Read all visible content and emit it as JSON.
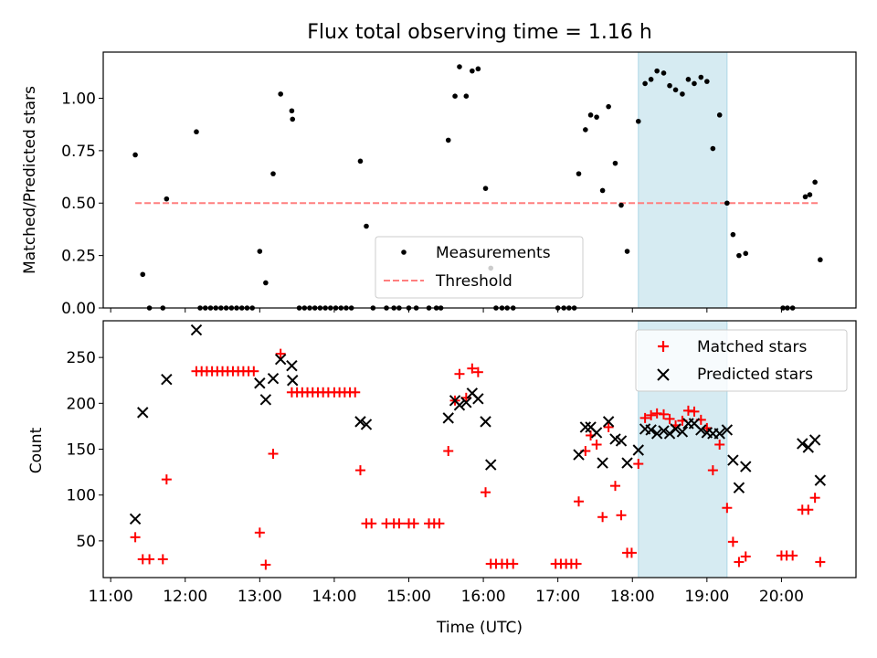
{
  "figure": {
    "title": "Flux total observing time = 1.16 h"
  },
  "chart_data": [
    {
      "type": "scatter",
      "panel": "top",
      "xlabel": "",
      "ylabel": "Matched/Predicted stars",
      "xlim": [
        10.9,
        21.0
      ],
      "ylim": [
        0.0,
        1.22
      ],
      "yticks": [
        0.0,
        0.25,
        0.5,
        0.75,
        1.0
      ],
      "ytick_labels": [
        "0.00",
        "0.25",
        "0.50",
        "0.75",
        "1.00"
      ],
      "shaded_interval": {
        "x": [
          18.08,
          19.27
        ],
        "color": "#add8e6"
      },
      "legend": {
        "position": "lower-center",
        "entries": [
          "Measurements",
          "Threshold"
        ]
      },
      "threshold": {
        "name": "Threshold",
        "x": [
          11.33,
          20.5
        ],
        "y": 0.5,
        "color": "#ff7f7f",
        "style": "dashed"
      },
      "series": [
        {
          "name": "Measurements",
          "color": "#000000",
          "marker": "dot",
          "points": [
            [
              11.33,
              0.73
            ],
            [
              11.43,
              0.16
            ],
            [
              11.52,
              0.0
            ],
            [
              11.7,
              0.0
            ],
            [
              11.75,
              0.52
            ],
            [
              12.15,
              0.84
            ],
            [
              12.2,
              0.0
            ],
            [
              12.27,
              0.0
            ],
            [
              12.34,
              0.0
            ],
            [
              12.41,
              0.0
            ],
            [
              12.48,
              0.0
            ],
            [
              12.55,
              0.0
            ],
            [
              12.62,
              0.0
            ],
            [
              12.69,
              0.0
            ],
            [
              12.76,
              0.0
            ],
            [
              12.83,
              0.0
            ],
            [
              12.9,
              0.0
            ],
            [
              13.0,
              0.27
            ],
            [
              13.08,
              0.12
            ],
            [
              13.18,
              0.64
            ],
            [
              13.28,
              1.02
            ],
            [
              13.43,
              0.94
            ],
            [
              13.44,
              0.9
            ],
            [
              13.53,
              0.0
            ],
            [
              13.6,
              0.0
            ],
            [
              13.67,
              0.0
            ],
            [
              13.74,
              0.0
            ],
            [
              13.81,
              0.0
            ],
            [
              13.88,
              0.0
            ],
            [
              13.95,
              0.0
            ],
            [
              14.02,
              0.0
            ],
            [
              14.09,
              0.0
            ],
            [
              14.16,
              0.0
            ],
            [
              14.23,
              0.0
            ],
            [
              14.35,
              0.7
            ],
            [
              14.43,
              0.39
            ],
            [
              14.52,
              0.0
            ],
            [
              14.7,
              0.0
            ],
            [
              14.8,
              0.0
            ],
            [
              14.87,
              0.0
            ],
            [
              15.0,
              0.0
            ],
            [
              15.1,
              0.0
            ],
            [
              15.27,
              0.0
            ],
            [
              15.37,
              0.0
            ],
            [
              15.43,
              0.0
            ],
            [
              15.53,
              0.8
            ],
            [
              15.62,
              1.01
            ],
            [
              15.68,
              1.15
            ],
            [
              15.77,
              1.01
            ],
            [
              15.85,
              1.13
            ],
            [
              15.93,
              1.14
            ],
            [
              16.03,
              0.57
            ],
            [
              16.1,
              0.19
            ],
            [
              16.17,
              0.0
            ],
            [
              16.25,
              0.0
            ],
            [
              16.32,
              0.0
            ],
            [
              16.4,
              0.0
            ],
            [
              17.0,
              0.0
            ],
            [
              17.08,
              0.0
            ],
            [
              17.15,
              0.0
            ],
            [
              17.22,
              0.0
            ],
            [
              17.28,
              0.64
            ],
            [
              17.37,
              0.85
            ],
            [
              17.44,
              0.92
            ],
            [
              17.52,
              0.91
            ],
            [
              17.6,
              0.56
            ],
            [
              17.68,
              0.96
            ],
            [
              17.77,
              0.69
            ],
            [
              17.85,
              0.49
            ],
            [
              17.93,
              0.27
            ],
            [
              18.08,
              0.89
            ],
            [
              18.17,
              1.07
            ],
            [
              18.25,
              1.09
            ],
            [
              18.33,
              1.13
            ],
            [
              18.42,
              1.12
            ],
            [
              18.5,
              1.06
            ],
            [
              18.58,
              1.04
            ],
            [
              18.67,
              1.02
            ],
            [
              18.75,
              1.09
            ],
            [
              18.83,
              1.07
            ],
            [
              18.92,
              1.1
            ],
            [
              19.0,
              1.08
            ],
            [
              19.08,
              0.76
            ],
            [
              19.17,
              0.92
            ],
            [
              19.27,
              0.5
            ],
            [
              19.35,
              0.35
            ],
            [
              19.43,
              0.25
            ],
            [
              19.52,
              0.26
            ],
            [
              20.02,
              0.0
            ],
            [
              20.08,
              0.0
            ],
            [
              20.15,
              0.0
            ],
            [
              20.32,
              0.53
            ],
            [
              20.38,
              0.54
            ],
            [
              20.45,
              0.6
            ],
            [
              20.52,
              0.23
            ]
          ]
        }
      ]
    },
    {
      "type": "scatter",
      "panel": "bottom",
      "xlabel": "Time (UTC)",
      "ylabel": "Count",
      "xlim": [
        10.9,
        21.0
      ],
      "ylim": [
        10,
        290
      ],
      "xticks": [
        11,
        12,
        13,
        14,
        15,
        16,
        17,
        18,
        19,
        20
      ],
      "xtick_labels": [
        "11:00",
        "12:00",
        "13:00",
        "14:00",
        "15:00",
        "16:00",
        "17:00",
        "18:00",
        "19:00",
        "20:00"
      ],
      "yticks": [
        50,
        100,
        150,
        200,
        250
      ],
      "ytick_labels": [
        "50",
        "100",
        "150",
        "200",
        "250"
      ],
      "shaded_interval": {
        "x": [
          18.08,
          19.27
        ],
        "color": "#add8e6"
      },
      "legend": {
        "position": "top-right",
        "entries": [
          "Matched stars",
          "Predicted stars"
        ]
      },
      "series": [
        {
          "name": "Matched stars",
          "color": "#ff0000",
          "marker": "plus",
          "points": [
            [
              11.33,
              54
            ],
            [
              11.43,
              30
            ],
            [
              11.52,
              30
            ],
            [
              11.7,
              30
            ],
            [
              11.75,
              117
            ],
            [
              12.15,
              235
            ],
            [
              12.22,
              235
            ],
            [
              12.29,
              235
            ],
            [
              12.36,
              235
            ],
            [
              12.43,
              235
            ],
            [
              12.5,
              235
            ],
            [
              12.57,
              235
            ],
            [
              12.64,
              235
            ],
            [
              12.71,
              235
            ],
            [
              12.78,
              235
            ],
            [
              12.85,
              235
            ],
            [
              12.92,
              235
            ],
            [
              13.0,
              59
            ],
            [
              13.08,
              24
            ],
            [
              13.18,
              145
            ],
            [
              13.28,
              254
            ],
            [
              13.43,
              212
            ],
            [
              13.5,
              212
            ],
            [
              13.57,
              212
            ],
            [
              13.64,
              212
            ],
            [
              13.71,
              212
            ],
            [
              13.78,
              212
            ],
            [
              13.85,
              212
            ],
            [
              13.92,
              212
            ],
            [
              14.0,
              212
            ],
            [
              14.07,
              212
            ],
            [
              14.14,
              212
            ],
            [
              14.21,
              212
            ],
            [
              14.28,
              212
            ],
            [
              14.35,
              127
            ],
            [
              14.43,
              69
            ],
            [
              14.5,
              69
            ],
            [
              14.7,
              69
            ],
            [
              14.8,
              69
            ],
            [
              14.87,
              69
            ],
            [
              15.0,
              69
            ],
            [
              15.07,
              69
            ],
            [
              15.27,
              69
            ],
            [
              15.34,
              69
            ],
            [
              15.41,
              69
            ],
            [
              15.53,
              148
            ],
            [
              15.62,
              203
            ],
            [
              15.68,
              232
            ],
            [
              15.77,
              206
            ],
            [
              15.85,
              238
            ],
            [
              15.93,
              234
            ],
            [
              16.03,
              103
            ],
            [
              16.1,
              25
            ],
            [
              16.17,
              25
            ],
            [
              16.25,
              25
            ],
            [
              16.32,
              25
            ],
            [
              16.4,
              25
            ],
            [
              16.97,
              25
            ],
            [
              17.04,
              25
            ],
            [
              17.11,
              25
            ],
            [
              17.18,
              25
            ],
            [
              17.25,
              25
            ],
            [
              17.28,
              93
            ],
            [
              17.37,
              148
            ],
            [
              17.44,
              165
            ],
            [
              17.52,
              155
            ],
            [
              17.6,
              76
            ],
            [
              17.68,
              174
            ],
            [
              17.77,
              110
            ],
            [
              17.85,
              78
            ],
            [
              17.93,
              37
            ],
            [
              17.99,
              37
            ],
            [
              18.08,
              134
            ],
            [
              18.17,
              184
            ],
            [
              18.25,
              187
            ],
            [
              18.33,
              189
            ],
            [
              18.42,
              188
            ],
            [
              18.5,
              183
            ],
            [
              18.58,
              176
            ],
            [
              18.67,
              181
            ],
            [
              18.75,
              192
            ],
            [
              18.83,
              191
            ],
            [
              18.92,
              182
            ],
            [
              19.0,
              173
            ],
            [
              19.08,
              127
            ],
            [
              19.17,
              155
            ],
            [
              19.27,
              86
            ],
            [
              19.35,
              49
            ],
            [
              19.43,
              27
            ],
            [
              19.52,
              33
            ],
            [
              20.0,
              34
            ],
            [
              20.07,
              34
            ],
            [
              20.15,
              34
            ],
            [
              20.28,
              84
            ],
            [
              20.36,
              84
            ],
            [
              20.45,
              97
            ],
            [
              20.52,
              27
            ]
          ]
        },
        {
          "name": "Predicted stars",
          "color": "#000000",
          "marker": "x",
          "points": [
            [
              11.33,
              74
            ],
            [
              11.43,
              190
            ],
            [
              11.75,
              226
            ],
            [
              12.15,
              280
            ],
            [
              13.0,
              222
            ],
            [
              13.08,
              204
            ],
            [
              13.18,
              227
            ],
            [
              13.28,
              248
            ],
            [
              13.43,
              241
            ],
            [
              13.44,
              225
            ],
            [
              14.35,
              180
            ],
            [
              14.43,
              177
            ],
            [
              15.53,
              184
            ],
            [
              15.62,
              203
            ],
            [
              15.68,
              198
            ],
            [
              15.77,
              201
            ],
            [
              15.85,
              211
            ],
            [
              15.93,
              205
            ],
            [
              16.03,
              180
            ],
            [
              16.1,
              133
            ],
            [
              17.28,
              144
            ],
            [
              17.37,
              174
            ],
            [
              17.44,
              174
            ],
            [
              17.52,
              168
            ],
            [
              17.6,
              135
            ],
            [
              17.68,
              180
            ],
            [
              17.77,
              161
            ],
            [
              17.85,
              159
            ],
            [
              17.93,
              135
            ],
            [
              18.08,
              149
            ],
            [
              18.17,
              172
            ],
            [
              18.25,
              171
            ],
            [
              18.33,
              167
            ],
            [
              18.42,
              170
            ],
            [
              18.5,
              167
            ],
            [
              18.58,
              172
            ],
            [
              18.67,
              169
            ],
            [
              18.75,
              178
            ],
            [
              18.83,
              178
            ],
            [
              18.92,
              171
            ],
            [
              19.0,
              168
            ],
            [
              19.08,
              167
            ],
            [
              19.17,
              167
            ],
            [
              19.27,
              171
            ],
            [
              19.35,
              138
            ],
            [
              19.43,
              108
            ],
            [
              19.52,
              131
            ],
            [
              20.28,
              156
            ],
            [
              20.36,
              152
            ],
            [
              20.45,
              160
            ],
            [
              20.52,
              116
            ]
          ]
        }
      ]
    }
  ]
}
